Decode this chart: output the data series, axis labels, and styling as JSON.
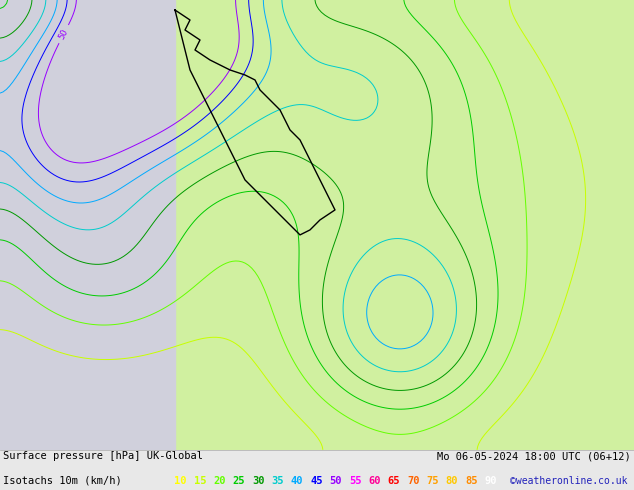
{
  "title_left": "Surface pressure [hPa] UK-Global",
  "title_right": "Mo 06-05-2024 18:00 UTC (06+12)",
  "legend_label": "Isotachs 10m (km/h)",
  "copyright": "©weatheronline.co.uk",
  "legend_values": [
    "10",
    "15",
    "20",
    "25",
    "30",
    "35",
    "40",
    "45",
    "50",
    "55",
    "60",
    "65",
    "70",
    "75",
    "80",
    "85",
    "90"
  ],
  "legend_colors": [
    "#ffff00",
    "#c8ff00",
    "#64ff00",
    "#00cc00",
    "#009900",
    "#00cccc",
    "#00aaff",
    "#0000ff",
    "#9600ff",
    "#ff00ff",
    "#ff0096",
    "#ff0000",
    "#ff6400",
    "#ffa000",
    "#ffc800",
    "#ff8c00",
    "#ffffff"
  ],
  "sea_color": "#d0d0dc",
  "land_color_center": "#c8e0b0",
  "land_color_right": "#d0f0a0",
  "fig_bg": "#e8e8e8",
  "fig_width": 6.34,
  "fig_height": 4.9,
  "dpi": 100
}
